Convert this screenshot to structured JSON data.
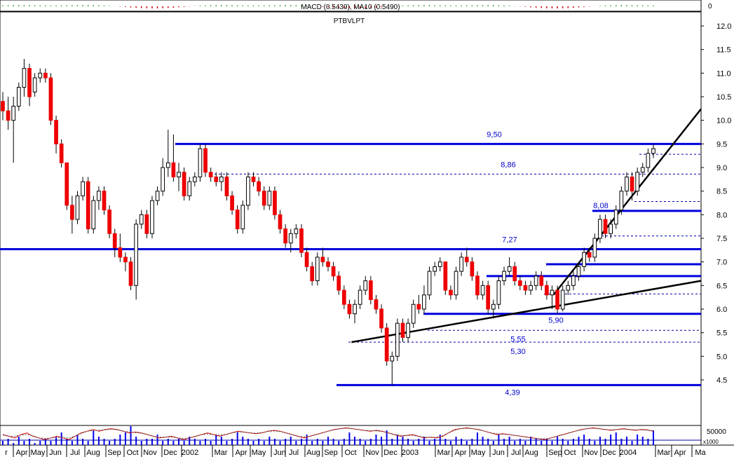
{
  "chart_data": {
    "type": "candlestick",
    "title": "PTBVLPT",
    "indicator_label": "MACD (0.5439), MA10 (0.5490)",
    "macd_axis_label": "0",
    "volume_axis_label": "50000",
    "volume_unit": "x1000",
    "ylim": [
      4.2,
      12.4
    ],
    "y_ticks": [
      "12.0",
      "11.5",
      "11.0",
      "10.5",
      "10.0",
      "9.5",
      "9.0",
      "8.5",
      "8.0",
      "7.5",
      "7.0",
      "6.5",
      "6.0",
      "5.5",
      "5.0",
      "4.5"
    ],
    "x_labels": [
      "r",
      "Apr",
      "May",
      "Jun",
      "Jul",
      "Aug",
      "Sep",
      "Oct",
      "Nov",
      "Dec",
      "2002",
      "Mar",
      "Apr",
      "May",
      "Jun",
      "Jul",
      "Aug",
      "Sep",
      "Oct",
      "Nov",
      "Dec",
      "2003",
      "Mar",
      "Apr",
      "May",
      "Jun",
      "Jul",
      "Aug",
      "Sep",
      "Oct",
      "Nov",
      "Dec",
      "2004",
      "Mar",
      "Apr",
      "Ma"
    ],
    "horizontal_levels": [
      {
        "label": "9,50",
        "value": 9.5,
        "style": "solid"
      },
      {
        "label": "8,86",
        "value": 8.86,
        "style": "dashed"
      },
      {
        "label": "8,08",
        "value": 8.08,
        "style": "solid"
      },
      {
        "label": "7,27",
        "value": 7.27,
        "style": "solid"
      },
      {
        "label": "5,90",
        "value": 5.9,
        "style": "solid"
      },
      {
        "label": "5,55",
        "value": 5.55,
        "style": "dashed"
      },
      {
        "label": "5,30",
        "value": 5.3,
        "style": "dashed"
      },
      {
        "label": "4,39",
        "value": 4.39,
        "style": "solid"
      }
    ],
    "extra_levels": [
      {
        "value": 9.28,
        "style": "dashed"
      },
      {
        "value": 8.28,
        "style": "dashed"
      },
      {
        "value": 7.55,
        "style": "dashed"
      },
      {
        "value": 6.95,
        "style": "solid"
      },
      {
        "value": 6.7,
        "style": "solid"
      },
      {
        "value": 6.32,
        "style": "dashed"
      }
    ],
    "trendlines": [
      {
        "from": [
          65,
          5.3
        ],
        "to": [
          130,
          6.55
        ]
      },
      {
        "from": [
          103,
          6.3
        ],
        "to": [
          131,
          10.2
        ]
      }
    ],
    "candles": [
      [
        10.4,
        10.6,
        10.0,
        10.2
      ],
      [
        10.2,
        10.5,
        9.8,
        10.0
      ],
      [
        10.0,
        10.5,
        9.1,
        10.3
      ],
      [
        10.3,
        10.8,
        10.2,
        10.7
      ],
      [
        10.7,
        11.3,
        10.5,
        11.1
      ],
      [
        11.1,
        11.2,
        10.3,
        10.5
      ],
      [
        10.6,
        11.0,
        10.5,
        10.9
      ],
      [
        10.9,
        11.1,
        10.8,
        11.0
      ],
      [
        11.0,
        11.1,
        10.8,
        10.9
      ],
      [
        10.9,
        11.0,
        9.9,
        10.0
      ],
      [
        10.0,
        10.1,
        9.3,
        9.5
      ],
      [
        9.5,
        9.6,
        9.0,
        9.1
      ],
      [
        9.1,
        9.1,
        8.1,
        8.2
      ],
      [
        8.2,
        8.4,
        7.6,
        7.9
      ],
      [
        7.9,
        8.5,
        7.8,
        8.4
      ],
      [
        8.4,
        8.8,
        8.3,
        8.7
      ],
      [
        8.7,
        8.8,
        7.6,
        7.7
      ],
      [
        7.7,
        8.4,
        7.6,
        8.3
      ],
      [
        8.3,
        8.6,
        8.1,
        8.5
      ],
      [
        8.5,
        8.6,
        8.0,
        8.1
      ],
      [
        8.1,
        8.2,
        7.5,
        7.6
      ],
      [
        7.6,
        7.7,
        7.1,
        7.3
      ],
      [
        7.3,
        7.6,
        7.0,
        7.1
      ],
      [
        7.1,
        7.2,
        6.8,
        7.0
      ],
      [
        7.0,
        7.1,
        6.4,
        6.5
      ],
      [
        6.5,
        7.9,
        6.2,
        7.8
      ],
      [
        7.8,
        8.1,
        7.7,
        8.0
      ],
      [
        8.0,
        8.1,
        7.5,
        7.6
      ],
      [
        7.6,
        8.4,
        7.5,
        8.3
      ],
      [
        8.3,
        8.6,
        8.2,
        8.5
      ],
      [
        8.5,
        9.2,
        8.4,
        9.0
      ],
      [
        9.0,
        9.8,
        8.8,
        9.1
      ],
      [
        9.1,
        9.7,
        8.7,
        8.8
      ],
      [
        8.8,
        9.1,
        8.5,
        8.9
      ],
      [
        8.9,
        9.0,
        8.3,
        8.4
      ],
      [
        8.4,
        8.8,
        8.3,
        8.7
      ],
      [
        8.7,
        8.9,
        8.6,
        8.8
      ],
      [
        8.8,
        9.5,
        8.7,
        9.4
      ],
      [
        9.4,
        9.5,
        8.8,
        8.9
      ],
      [
        8.9,
        9.0,
        8.7,
        8.8
      ],
      [
        8.8,
        8.9,
        8.6,
        8.7
      ],
      [
        8.7,
        8.9,
        8.5,
        8.8
      ],
      [
        8.8,
        8.9,
        8.3,
        8.4
      ],
      [
        8.4,
        8.5,
        8.0,
        8.1
      ],
      [
        8.1,
        8.2,
        7.6,
        7.7
      ],
      [
        7.7,
        8.3,
        7.6,
        8.2
      ],
      [
        8.2,
        8.9,
        8.1,
        8.8
      ],
      [
        8.8,
        8.9,
        8.6,
        8.7
      ],
      [
        8.7,
        8.8,
        8.4,
        8.5
      ],
      [
        8.5,
        8.6,
        8.1,
        8.2
      ],
      [
        8.2,
        8.6,
        8.1,
        8.5
      ],
      [
        8.5,
        8.6,
        7.9,
        8.0
      ],
      [
        8.0,
        8.1,
        7.6,
        7.7
      ],
      [
        7.7,
        7.8,
        7.3,
        7.4
      ],
      [
        7.4,
        7.7,
        7.2,
        7.6
      ],
      [
        7.6,
        7.8,
        7.5,
        7.7
      ],
      [
        7.7,
        7.8,
        7.1,
        7.2
      ],
      [
        7.2,
        7.3,
        6.8,
        6.9
      ],
      [
        6.9,
        7.0,
        6.5,
        6.6
      ],
      [
        6.6,
        7.2,
        6.5,
        7.1
      ],
      [
        7.1,
        7.3,
        6.9,
        7.0
      ],
      [
        7.0,
        7.1,
        6.8,
        6.9
      ],
      [
        6.9,
        7.0,
        6.6,
        6.7
      ],
      [
        6.7,
        6.8,
        6.3,
        6.4
      ],
      [
        6.4,
        6.5,
        6.0,
        6.1
      ],
      [
        6.1,
        6.2,
        5.8,
        5.9
      ],
      [
        5.9,
        6.2,
        5.7,
        6.1
      ],
      [
        6.1,
        6.5,
        6.0,
        6.4
      ],
      [
        6.4,
        6.7,
        6.3,
        6.6
      ],
      [
        6.6,
        6.7,
        6.1,
        6.2
      ],
      [
        6.2,
        6.3,
        5.9,
        6.0
      ],
      [
        6.0,
        6.1,
        5.5,
        5.6
      ],
      [
        5.6,
        5.7,
        4.8,
        4.9
      ],
      [
        4.9,
        5.1,
        4.39,
        5.0
      ],
      [
        5.0,
        5.8,
        4.9,
        5.7
      ],
      [
        5.7,
        5.8,
        5.3,
        5.4
      ],
      [
        5.4,
        5.8,
        5.3,
        5.7
      ],
      [
        5.7,
        6.2,
        5.6,
        6.1
      ],
      [
        6.1,
        6.3,
        5.9,
        6.0
      ],
      [
        6.0,
        6.5,
        5.9,
        6.3
      ],
      [
        6.3,
        6.9,
        6.2,
        6.8
      ],
      [
        6.8,
        7.0,
        6.7,
        6.9
      ],
      [
        6.9,
        7.1,
        6.8,
        7.0
      ],
      [
        7.0,
        7.0,
        6.3,
        6.4
      ],
      [
        6.4,
        6.5,
        6.2,
        6.3
      ],
      [
        6.3,
        6.9,
        6.2,
        6.8
      ],
      [
        6.8,
        7.2,
        6.7,
        7.1
      ],
      [
        7.1,
        7.3,
        6.9,
        7.0
      ],
      [
        7.0,
        7.1,
        6.6,
        6.7
      ],
      [
        6.7,
        6.8,
        6.2,
        6.3
      ],
      [
        6.3,
        6.6,
        6.2,
        6.5
      ],
      [
        6.5,
        6.6,
        5.9,
        6.0
      ],
      [
        6.0,
        6.2,
        5.8,
        6.1
      ],
      [
        6.1,
        6.7,
        6.0,
        6.6
      ],
      [
        6.6,
        6.9,
        6.5,
        6.8
      ],
      [
        6.8,
        7.1,
        6.7,
        6.9
      ],
      [
        6.9,
        7.0,
        6.5,
        6.6
      ],
      [
        6.6,
        6.7,
        6.4,
        6.5
      ],
      [
        6.5,
        6.6,
        6.3,
        6.4
      ],
      [
        6.4,
        6.6,
        6.3,
        6.5
      ],
      [
        6.5,
        6.8,
        6.4,
        6.7
      ],
      [
        6.7,
        6.8,
        6.4,
        6.5
      ],
      [
        6.5,
        6.6,
        6.2,
        6.3
      ],
      [
        6.3,
        6.5,
        6.0,
        6.4
      ],
      [
        6.4,
        6.5,
        5.9,
        6.0
      ],
      [
        6.0,
        6.5,
        5.95,
        6.4
      ],
      [
        6.4,
        6.6,
        6.3,
        6.5
      ],
      [
        6.5,
        6.8,
        6.4,
        6.7
      ],
      [
        6.7,
        7.0,
        6.6,
        6.9
      ],
      [
        6.9,
        7.3,
        6.8,
        7.2
      ],
      [
        7.2,
        7.3,
        7.0,
        7.1
      ],
      [
        7.1,
        7.6,
        7.0,
        7.5
      ],
      [
        7.5,
        8.0,
        7.4,
        7.9
      ],
      [
        7.9,
        8.0,
        7.5,
        7.6
      ],
      [
        7.6,
        7.9,
        7.5,
        7.8
      ],
      [
        7.8,
        8.2,
        7.7,
        8.1
      ],
      [
        8.1,
        8.6,
        8.0,
        8.5
      ],
      [
        8.5,
        8.9,
        8.4,
        8.8
      ],
      [
        8.8,
        8.9,
        8.3,
        8.5
      ],
      [
        8.5,
        9.0,
        8.4,
        8.9
      ],
      [
        8.9,
        9.1,
        8.8,
        9.0
      ],
      [
        9.0,
        9.4,
        8.9,
        9.3
      ],
      [
        9.3,
        9.5,
        9.2,
        9.4
      ]
    ],
    "volume": [
      2,
      3,
      1,
      4,
      2,
      3,
      1,
      2,
      3,
      2,
      4,
      6,
      3,
      2,
      5,
      3,
      2,
      7,
      4,
      3,
      2,
      3,
      5,
      6,
      9,
      4,
      2,
      3,
      3,
      5,
      2,
      3,
      2,
      3,
      2,
      4,
      3,
      2,
      3,
      2,
      5,
      4,
      2,
      3,
      6,
      4,
      3,
      2,
      3,
      2,
      4,
      3,
      2,
      3,
      4,
      2,
      3,
      5,
      2,
      3,
      2,
      4,
      3,
      2,
      3,
      6,
      4,
      3,
      2,
      3,
      5,
      4,
      7,
      3,
      5,
      4,
      3,
      2,
      3,
      4,
      2,
      3,
      5,
      3,
      2,
      4,
      3,
      2,
      3,
      6,
      4,
      3,
      2,
      5,
      3,
      4,
      2,
      3,
      2,
      4,
      3,
      2,
      3,
      2,
      4,
      3,
      2,
      3,
      4,
      5,
      3,
      2,
      4,
      3,
      5,
      6,
      3,
      4,
      2,
      5,
      4,
      3,
      7
    ],
    "stoch_k": [
      0.5,
      0.4,
      0.3,
      0.5,
      0.6,
      0.4,
      0.3,
      0.2,
      0.3,
      0.4,
      0.3,
      0.2,
      0.4,
      0.6,
      0.7,
      0.8,
      0.7,
      0.8,
      0.85,
      0.8,
      0.7,
      0.6,
      0.65,
      0.6,
      0.5,
      0.4,
      0.3,
      0.35,
      0.4,
      0.3,
      0.2,
      0.3,
      0.4,
      0.5,
      0.6,
      0.5,
      0.4,
      0.5,
      0.6,
      0.7,
      0.65,
      0.6,
      0.55,
      0.6,
      0.7,
      0.75,
      0.7,
      0.6,
      0.5,
      0.4,
      0.3,
      0.4,
      0.5,
      0.6,
      0.7,
      0.8,
      0.85,
      0.9,
      0.85,
      0.8,
      0.75,
      0.7,
      0.75,
      0.7,
      0.6,
      0.5,
      0.4,
      0.45,
      0.5,
      0.4,
      0.3,
      0.35,
      0.3,
      0.4,
      0.6,
      0.8,
      0.85,
      0.9,
      0.85,
      0.8,
      0.7,
      0.6,
      0.5,
      0.55,
      0.5,
      0.45,
      0.4,
      0.35,
      0.3,
      0.25,
      0.2,
      0.3,
      0.4,
      0.5,
      0.6,
      0.7,
      0.8,
      0.85,
      0.9,
      0.85,
      0.8,
      0.75,
      0.8,
      0.85,
      0.8,
      0.75,
      0.8,
      0.78,
      0.7
    ]
  }
}
